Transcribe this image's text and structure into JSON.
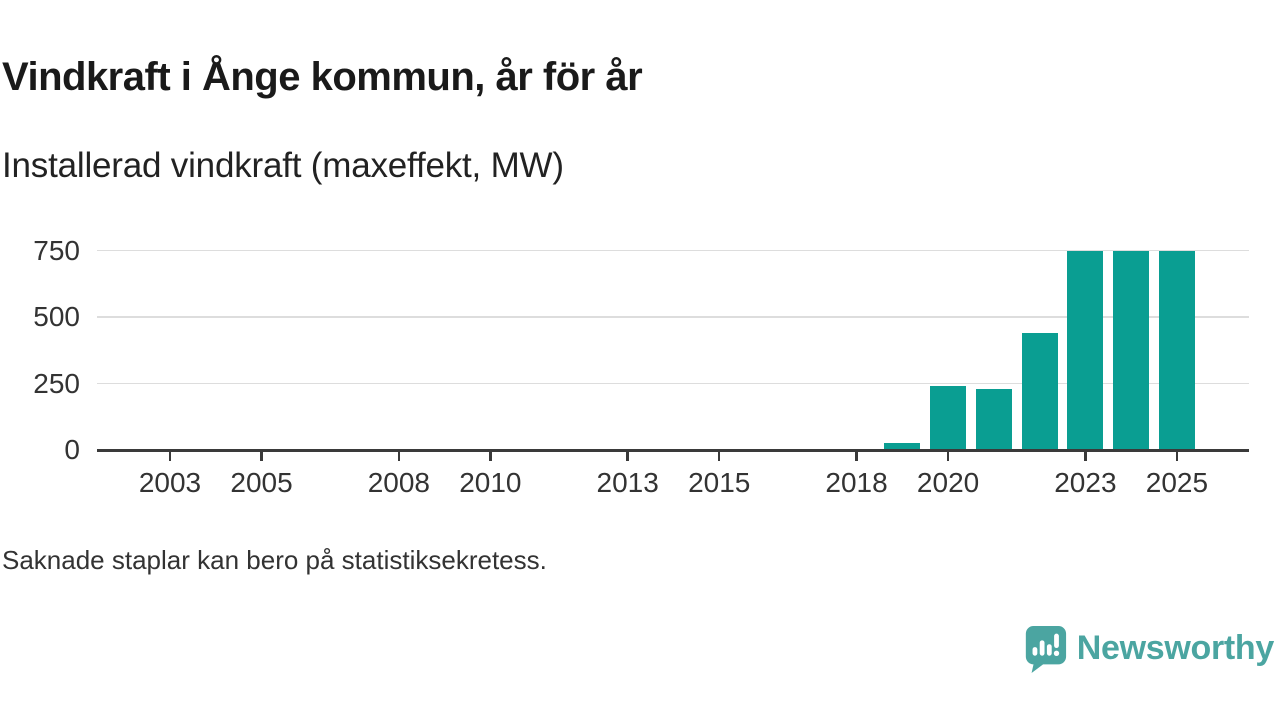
{
  "header": {
    "title": "Vindkraft i Ånge kommun, år för år",
    "subtitle": "Installerad vindkraft (maxeffekt, MW)"
  },
  "chart_data": {
    "type": "bar",
    "title": "Vindkraft i Ånge kommun, år för år",
    "subtitle": "Installerad vindkraft (maxeffekt, MW)",
    "ylabel": "Installerad vindkraft (maxeffekt, MW)",
    "xlabel": "",
    "unit": "MW",
    "categories": [
      2003,
      2004,
      2005,
      2006,
      2007,
      2008,
      2009,
      2010,
      2011,
      2012,
      2013,
      2014,
      2015,
      2016,
      2017,
      2018,
      2019,
      2020,
      2021,
      2022,
      2023,
      2024,
      2025
    ],
    "values": [
      null,
      null,
      null,
      null,
      null,
      null,
      null,
      null,
      null,
      null,
      null,
      null,
      null,
      null,
      null,
      null,
      25,
      240,
      230,
      440,
      750,
      750,
      750
    ],
    "x_axis_tick_years": [
      2003,
      2005,
      2008,
      2010,
      2013,
      2015,
      2018,
      2020,
      2023,
      2025
    ],
    "y_axis_ticks": [
      0,
      250,
      500,
      750
    ],
    "ylim": [
      0,
      790
    ],
    "grid": "horizontal",
    "legend": "none",
    "bar_color": "#0a9e92",
    "axis_color": "#3a3a3a",
    "grid_color": "#dddddd",
    "missing_bars_note": "Saknade staplar kan bero på statistiksekretess."
  },
  "footnote": {
    "text": "Saknade staplar kan bero på statistiksekretess."
  },
  "branding": {
    "name": "Newsworthy",
    "logo_color": "#4ba5a1"
  }
}
